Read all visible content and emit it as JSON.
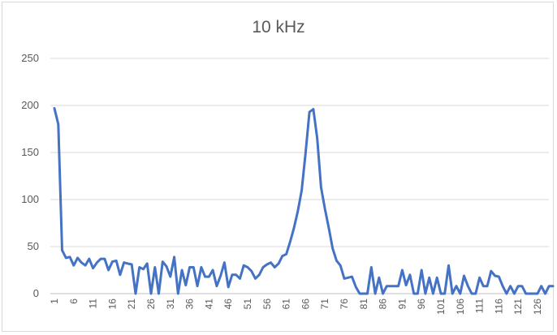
{
  "chart_data": {
    "type": "line",
    "title": "10 kHz",
    "xlabel": "",
    "ylabel": "",
    "ylim": [
      0,
      250
    ],
    "yticks": [
      0,
      50,
      100,
      150,
      200,
      250
    ],
    "xlim": [
      1,
      130
    ],
    "xticks": [
      "1",
      "6",
      "11",
      "16",
      "21",
      "26",
      "31",
      "36",
      "41",
      "46",
      "51",
      "56",
      "61",
      "66",
      "71",
      "76",
      "81",
      "86",
      "91",
      "96",
      "101",
      "106",
      "111",
      "116",
      "121",
      "126"
    ],
    "grid": true,
    "legend": "none",
    "line_color": "#4472c4",
    "series": [
      {
        "values": [
          197,
          180,
          46,
          38,
          39,
          30,
          38,
          33,
          30,
          37,
          27,
          33,
          37,
          37,
          25,
          34,
          35,
          20,
          33,
          32,
          31,
          0,
          28,
          26,
          32,
          0,
          28,
          0,
          34,
          29,
          18,
          39,
          0,
          25,
          9,
          28,
          28,
          8,
          28,
          18,
          18,
          25,
          8,
          19,
          33,
          7,
          20,
          20,
          16,
          30,
          28,
          24,
          16,
          20,
          28,
          31,
          33,
          28,
          32,
          40,
          42,
          55,
          70,
          88,
          110,
          150,
          193,
          196,
          165,
          113,
          90,
          70,
          48,
          35,
          30,
          16,
          17,
          18,
          7,
          0,
          0,
          0,
          28,
          0,
          17,
          0,
          8,
          8,
          8,
          8,
          25,
          9,
          20,
          0,
          0,
          25,
          0,
          17,
          0,
          17,
          0,
          0,
          30,
          0,
          8,
          0,
          19,
          8,
          0,
          0,
          17,
          8,
          8,
          24,
          19,
          18,
          8,
          0,
          8,
          0,
          8,
          8,
          0,
          0,
          0,
          0,
          8,
          0,
          8,
          8
        ]
      }
    ]
  }
}
